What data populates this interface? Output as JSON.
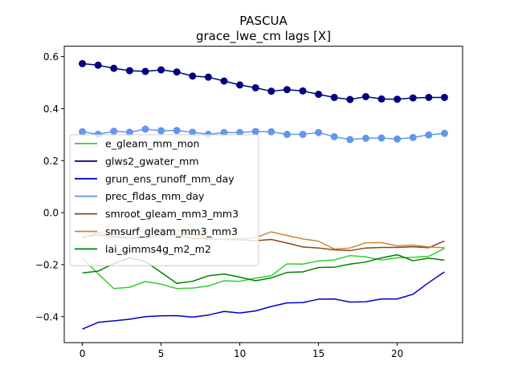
{
  "chart_data": {
    "type": "line",
    "title": "PASCUA",
    "subtitle": "grace_lwe_cm lags [X]",
    "xlabel": "",
    "ylabel": "",
    "xlim": [
      -1.15,
      24.15
    ],
    "ylim": [
      -0.5,
      0.64
    ],
    "xticks": [
      0,
      5,
      10,
      15,
      20
    ],
    "yticks": [
      -0.4,
      -0.2,
      0.0,
      0.2,
      0.4,
      0.6
    ],
    "xtick_labels": [
      "0",
      "5",
      "10",
      "15",
      "20"
    ],
    "ytick_labels": [
      "−0.4",
      "−0.2",
      "0.0",
      "0.2",
      "0.4",
      "0.6"
    ],
    "grid": false,
    "legend_position": "center-left",
    "x": [
      0,
      1,
      2,
      3,
      4,
      5,
      6,
      7,
      8,
      9,
      10,
      11,
      12,
      13,
      14,
      15,
      16,
      17,
      18,
      19,
      20,
      21,
      22,
      23
    ],
    "series": [
      {
        "name": "e_gleam_mm_mon",
        "color": "#32cd32",
        "marker": false,
        "values": [
          -0.175,
          -0.235,
          -0.292,
          -0.287,
          -0.265,
          -0.275,
          -0.292,
          -0.29,
          -0.282,
          -0.262,
          -0.264,
          -0.252,
          -0.243,
          -0.197,
          -0.198,
          -0.186,
          -0.182,
          -0.165,
          -0.17,
          -0.182,
          -0.174,
          -0.172,
          -0.168,
          -0.138
        ]
      },
      {
        "name": "glws2_gwater_mm",
        "color": "#000080",
        "marker": true,
        "values": [
          0.573,
          0.567,
          0.555,
          0.546,
          0.543,
          0.549,
          0.541,
          0.525,
          0.521,
          0.506,
          0.491,
          0.48,
          0.467,
          0.473,
          0.468,
          0.455,
          0.443,
          0.435,
          0.446,
          0.437,
          0.436,
          0.441,
          0.443,
          0.443
        ]
      },
      {
        "name": "grun_ens_runoff_mm_day",
        "color": "#0000cd",
        "marker": false,
        "values": [
          -0.448,
          -0.422,
          -0.416,
          -0.41,
          -0.4,
          -0.397,
          -0.396,
          -0.402,
          -0.394,
          -0.38,
          -0.386,
          -0.378,
          -0.361,
          -0.347,
          -0.346,
          -0.333,
          -0.332,
          -0.344,
          -0.343,
          -0.332,
          -0.332,
          -0.314,
          -0.269,
          -0.228
        ]
      },
      {
        "name": "prec_fldas_mm_day",
        "color": "#6495ed",
        "marker": true,
        "values": [
          0.311,
          0.301,
          0.313,
          0.309,
          0.321,
          0.315,
          0.316,
          0.309,
          0.301,
          0.308,
          0.308,
          0.312,
          0.311,
          0.301,
          0.301,
          0.308,
          0.292,
          0.281,
          0.286,
          0.287,
          0.283,
          0.289,
          0.299,
          0.305
        ]
      },
      {
        "name": "smroot_gleam_mm3_mm3",
        "color": "#8b4513",
        "marker": false,
        "values": [
          -0.095,
          -0.085,
          -0.093,
          -0.097,
          -0.096,
          -0.09,
          -0.084,
          -0.1,
          -0.1,
          -0.103,
          -0.104,
          -0.108,
          -0.103,
          -0.117,
          -0.132,
          -0.136,
          -0.143,
          -0.146,
          -0.136,
          -0.134,
          -0.134,
          -0.131,
          -0.135,
          -0.109
        ]
      },
      {
        "name": "smsurf_gleam_mm3_mm3",
        "color": "#cd853f",
        "marker": false,
        "values": [
          -0.098,
          -0.076,
          -0.078,
          -0.07,
          -0.074,
          -0.068,
          -0.066,
          -0.082,
          -0.104,
          -0.101,
          -0.1,
          -0.096,
          -0.074,
          -0.088,
          -0.101,
          -0.11,
          -0.14,
          -0.136,
          -0.116,
          -0.115,
          -0.128,
          -0.125,
          -0.132,
          -0.135
        ]
      },
      {
        "name": "lai_gimms4g_m2_m2",
        "color": "#008000",
        "marker": false,
        "values": [
          -0.232,
          -0.225,
          -0.196,
          -0.173,
          -0.188,
          -0.23,
          -0.272,
          -0.264,
          -0.243,
          -0.236,
          -0.248,
          -0.262,
          -0.251,
          -0.23,
          -0.228,
          -0.211,
          -0.21,
          -0.198,
          -0.19,
          -0.174,
          -0.162,
          -0.185,
          -0.175,
          -0.183
        ]
      }
    ]
  }
}
